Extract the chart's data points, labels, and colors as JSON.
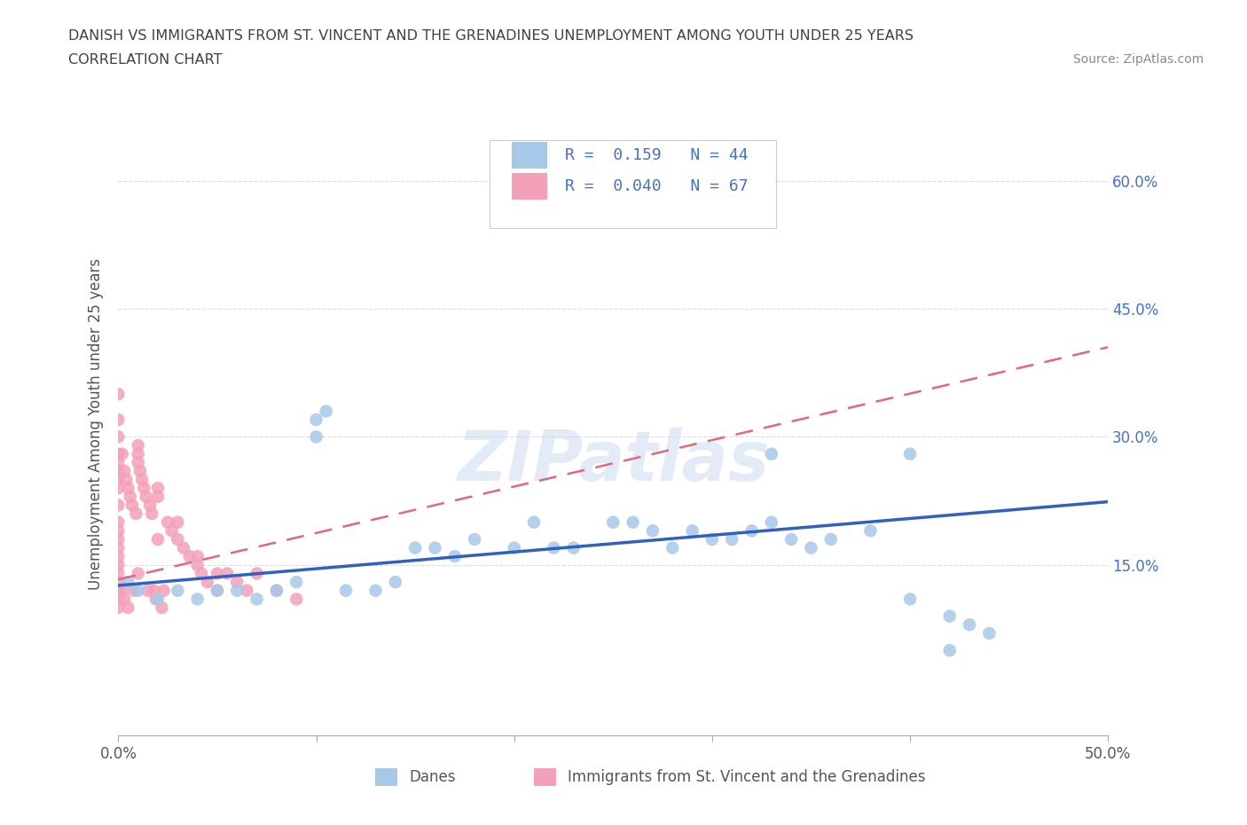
{
  "title_line1": "DANISH VS IMMIGRANTS FROM ST. VINCENT AND THE GRENADINES UNEMPLOYMENT AMONG YOUTH UNDER 25 YEARS",
  "title_line2": "CORRELATION CHART",
  "source": "Source: ZipAtlas.com",
  "ylabel": "Unemployment Among Youth under 25 years",
  "xlim": [
    0.0,
    0.5
  ],
  "ylim": [
    -0.05,
    0.68
  ],
  "xtick_pos": [
    0.0,
    0.1,
    0.2,
    0.3,
    0.4,
    0.5
  ],
  "xticklabels": [
    "0.0%",
    "",
    "",
    "",
    "",
    "50.0%"
  ],
  "ytick_positions": [
    0.15,
    0.3,
    0.45,
    0.6
  ],
  "ytick_labels": [
    "15.0%",
    "30.0%",
    "45.0%",
    "60.0%"
  ],
  "danes_color": "#a8c8e8",
  "immigrants_color": "#f4a0b8",
  "danes_line_color": "#3060c0",
  "immigrants_line_color": "#e06878",
  "danes_R": 0.159,
  "danes_N": 44,
  "immigrants_R": 0.04,
  "immigrants_N": 67,
  "watermark": "ZIPatlas",
  "background_color": "#ffffff",
  "grid_color": "#cccccc",
  "title_color": "#404040",
  "legend_text_color": "#4472c4",
  "danes_x": [
    0.005,
    0.01,
    0.02,
    0.03,
    0.04,
    0.05,
    0.06,
    0.07,
    0.08,
    0.09,
    0.1,
    0.105,
    0.115,
    0.13,
    0.14,
    0.15,
    0.16,
    0.17,
    0.18,
    0.2,
    0.21,
    0.22,
    0.23,
    0.25,
    0.26,
    0.27,
    0.28,
    0.29,
    0.3,
    0.31,
    0.32,
    0.33,
    0.34,
    0.35,
    0.36,
    0.38,
    0.4,
    0.42,
    0.43,
    0.44,
    0.33,
    0.1,
    0.4,
    0.42
  ],
  "danes_y": [
    0.13,
    0.12,
    0.11,
    0.12,
    0.11,
    0.12,
    0.12,
    0.11,
    0.12,
    0.13,
    0.32,
    0.33,
    0.12,
    0.12,
    0.13,
    0.17,
    0.17,
    0.16,
    0.18,
    0.17,
    0.2,
    0.17,
    0.17,
    0.2,
    0.2,
    0.19,
    0.17,
    0.19,
    0.18,
    0.18,
    0.19,
    0.2,
    0.18,
    0.17,
    0.18,
    0.19,
    0.11,
    0.09,
    0.08,
    0.07,
    0.28,
    0.3,
    0.28,
    0.05
  ],
  "immigrants_x": [
    0.0,
    0.0,
    0.0,
    0.0,
    0.0,
    0.0,
    0.0,
    0.0,
    0.0,
    0.0,
    0.0,
    0.0,
    0.0,
    0.0,
    0.0,
    0.0,
    0.0,
    0.0,
    0.0,
    0.0,
    0.002,
    0.002,
    0.003,
    0.003,
    0.004,
    0.005,
    0.005,
    0.006,
    0.007,
    0.008,
    0.009,
    0.01,
    0.01,
    0.011,
    0.012,
    0.013,
    0.014,
    0.015,
    0.016,
    0.017,
    0.018,
    0.019,
    0.02,
    0.022,
    0.023,
    0.025,
    0.027,
    0.03,
    0.033,
    0.036,
    0.04,
    0.042,
    0.045,
    0.05,
    0.055,
    0.06,
    0.065,
    0.07,
    0.08,
    0.09,
    0.01,
    0.01,
    0.02,
    0.02,
    0.03,
    0.04,
    0.05
  ],
  "immigrants_y": [
    0.35,
    0.32,
    0.3,
    0.28,
    0.27,
    0.26,
    0.25,
    0.24,
    0.22,
    0.2,
    0.19,
    0.18,
    0.17,
    0.16,
    0.15,
    0.14,
    0.13,
    0.12,
    0.11,
    0.1,
    0.28,
    0.12,
    0.26,
    0.11,
    0.25,
    0.24,
    0.1,
    0.23,
    0.22,
    0.12,
    0.21,
    0.29,
    0.28,
    0.26,
    0.25,
    0.24,
    0.23,
    0.12,
    0.22,
    0.21,
    0.12,
    0.11,
    0.23,
    0.1,
    0.12,
    0.2,
    0.19,
    0.18,
    0.17,
    0.16,
    0.15,
    0.14,
    0.13,
    0.12,
    0.14,
    0.13,
    0.12,
    0.14,
    0.12,
    0.11,
    0.27,
    0.14,
    0.24,
    0.18,
    0.2,
    0.16,
    0.14
  ]
}
